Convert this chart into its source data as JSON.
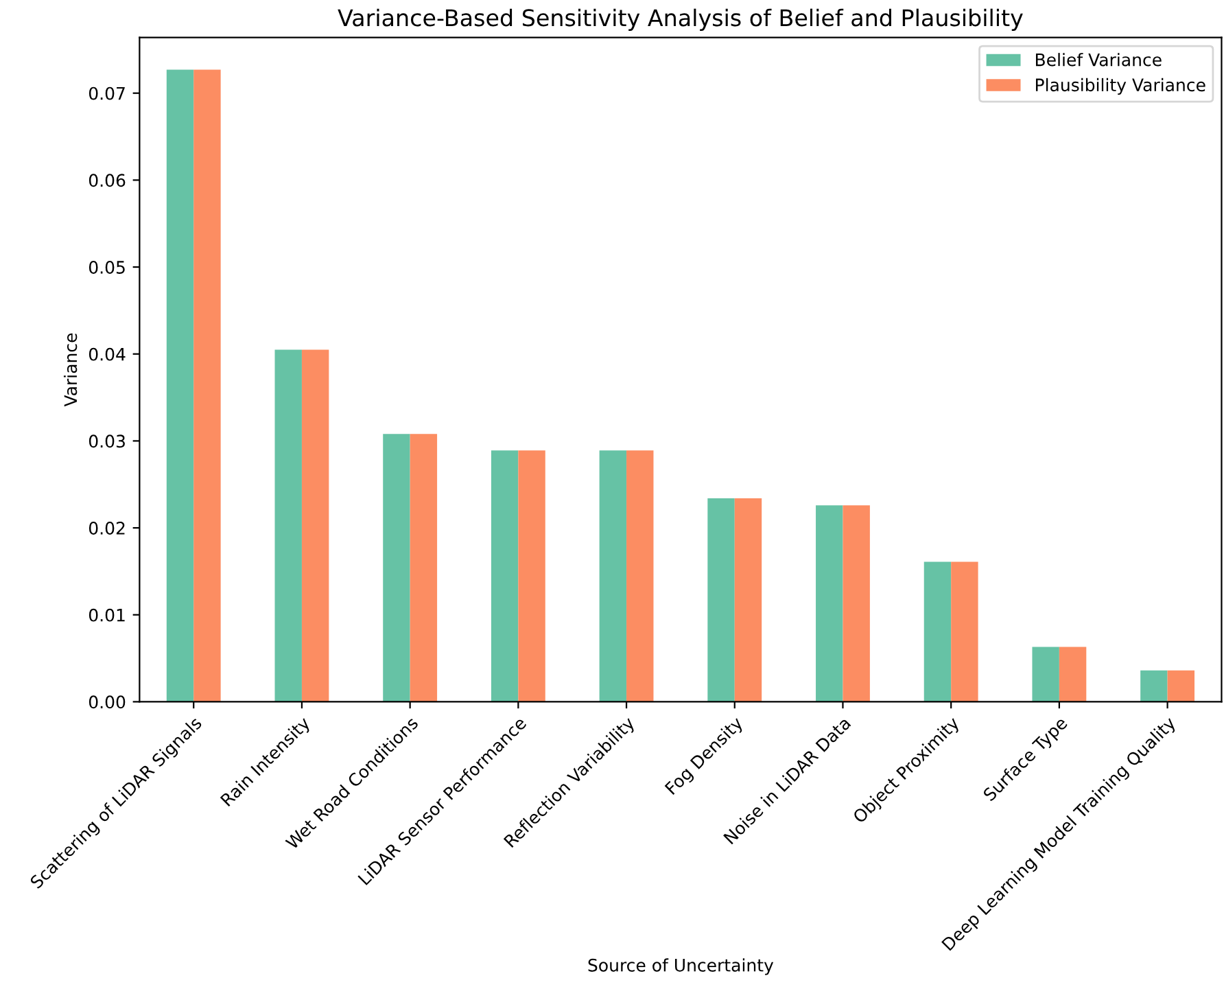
{
  "chart_data": {
    "type": "bar",
    "title": "Variance-Based Sensitivity Analysis of Belief and Plausibility",
    "xlabel": "Source of Uncertainty",
    "ylabel": "Variance",
    "categories": [
      "Scattering of LiDAR Signals",
      "Rain Intensity",
      "Wet Road Conditions",
      "LiDAR Sensor Performance",
      "Reflection Variability",
      "Fog Density",
      "Noise in LiDAR Data",
      "Object Proximity",
      "Surface Type",
      "Deep Learning Model Training Quality"
    ],
    "series": [
      {
        "name": "Belief Variance",
        "color": "#66c2a5",
        "values": [
          0.0727,
          0.0405,
          0.0308,
          0.0289,
          0.0289,
          0.0234,
          0.0226,
          0.0161,
          0.0063,
          0.0036
        ]
      },
      {
        "name": "Plausibility Variance",
        "color": "#fc8d62",
        "values": [
          0.0727,
          0.0405,
          0.0308,
          0.0289,
          0.0289,
          0.0234,
          0.0226,
          0.0161,
          0.0063,
          0.0036
        ]
      }
    ],
    "ylim": [
      0,
      0.0764
    ],
    "yticks": [
      {
        "value": 0,
        "label": "0.00"
      },
      {
        "value": 0.01,
        "label": "0.01"
      },
      {
        "value": 0.02,
        "label": "0.02"
      },
      {
        "value": 0.03,
        "label": "0.03"
      },
      {
        "value": 0.04,
        "label": "0.04"
      },
      {
        "value": 0.05,
        "label": "0.05"
      },
      {
        "value": 0.06,
        "label": "0.06"
      },
      {
        "value": 0.07,
        "label": "0.07"
      }
    ],
    "grid": false,
    "legend": "top right"
  }
}
